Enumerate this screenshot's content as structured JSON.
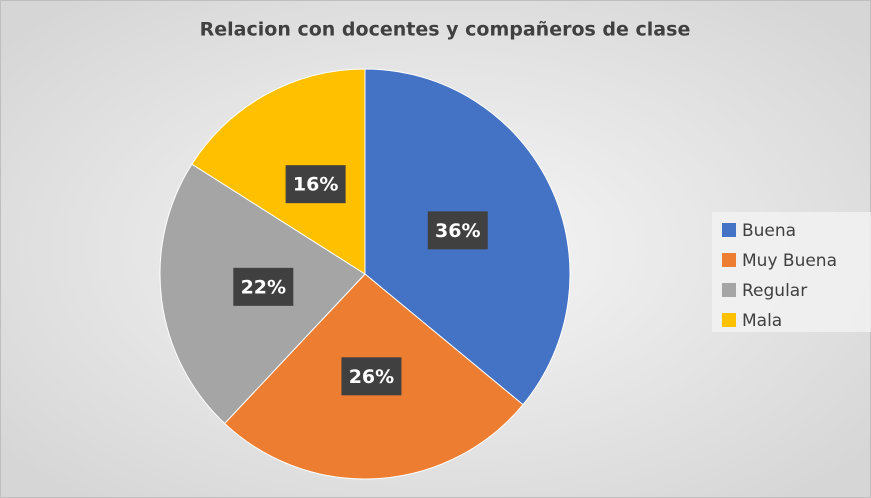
{
  "chart_data": {
    "type": "pie",
    "title": "Relacion con docentes y compañeros de clase",
    "categories": [
      "Buena",
      "Muy Buena",
      "Regular",
      "Mala"
    ],
    "values": [
      36,
      26,
      22,
      16
    ],
    "value_labels": [
      "36%",
      "26%",
      "22%",
      "16%"
    ],
    "colors": [
      "#4472c4",
      "#ed7d31",
      "#a5a5a5",
      "#ffc000"
    ],
    "legend": "right"
  }
}
